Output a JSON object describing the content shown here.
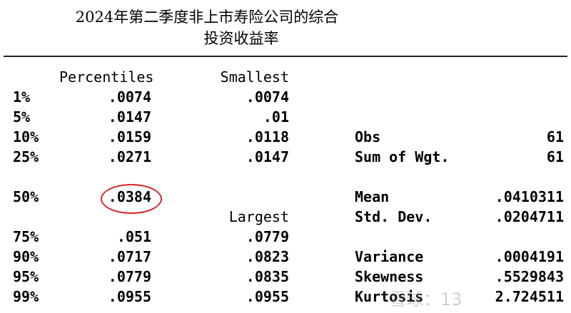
{
  "title": {
    "line1": "2024年第二季度非上市寿险公司的综合",
    "line2": "投资收益率"
  },
  "headers": {
    "percentiles": "Percentiles",
    "smallest": "Smallest",
    "largest": "Largest"
  },
  "rows": [
    {
      "pct": "1%",
      "value": ".0074",
      "extreme": ".0074",
      "stat": "",
      "stat_value": ""
    },
    {
      "pct": "5%",
      "value": ".0147",
      "extreme": ".01",
      "stat": "",
      "stat_value": ""
    },
    {
      "pct": "10%",
      "value": ".0159",
      "extreme": ".0118",
      "stat": "Obs",
      "stat_value": "61"
    },
    {
      "pct": "25%",
      "value": ".0271",
      "extreme": ".0147",
      "stat": "Sum of Wgt.",
      "stat_value": "61"
    },
    {
      "pct": "50%",
      "value": ".0384",
      "extreme": "",
      "stat": "Mean",
      "stat_value": ".0410311"
    },
    {
      "pct": "",
      "value": "",
      "extreme": "",
      "stat": "Std. Dev.",
      "stat_value": ".0204711"
    },
    {
      "pct": "75%",
      "value": ".051",
      "extreme": ".0779",
      "stat": "",
      "stat_value": ""
    },
    {
      "pct": "90%",
      "value": ".0717",
      "extreme": ".0823",
      "stat": "Variance",
      "stat_value": ".0004191"
    },
    {
      "pct": "95%",
      "value": ".0779",
      "extreme": ".0835",
      "stat": "Skewness",
      "stat_value": ".5529843"
    },
    {
      "pct": "99%",
      "value": ".0955",
      "extreme": ".0955",
      "stat": "Kurtosis",
      "stat_value": "2.724511"
    }
  ],
  "highlight": {
    "row": "50%",
    "color": "#d9262b"
  },
  "watermark": "雪球：13"
}
